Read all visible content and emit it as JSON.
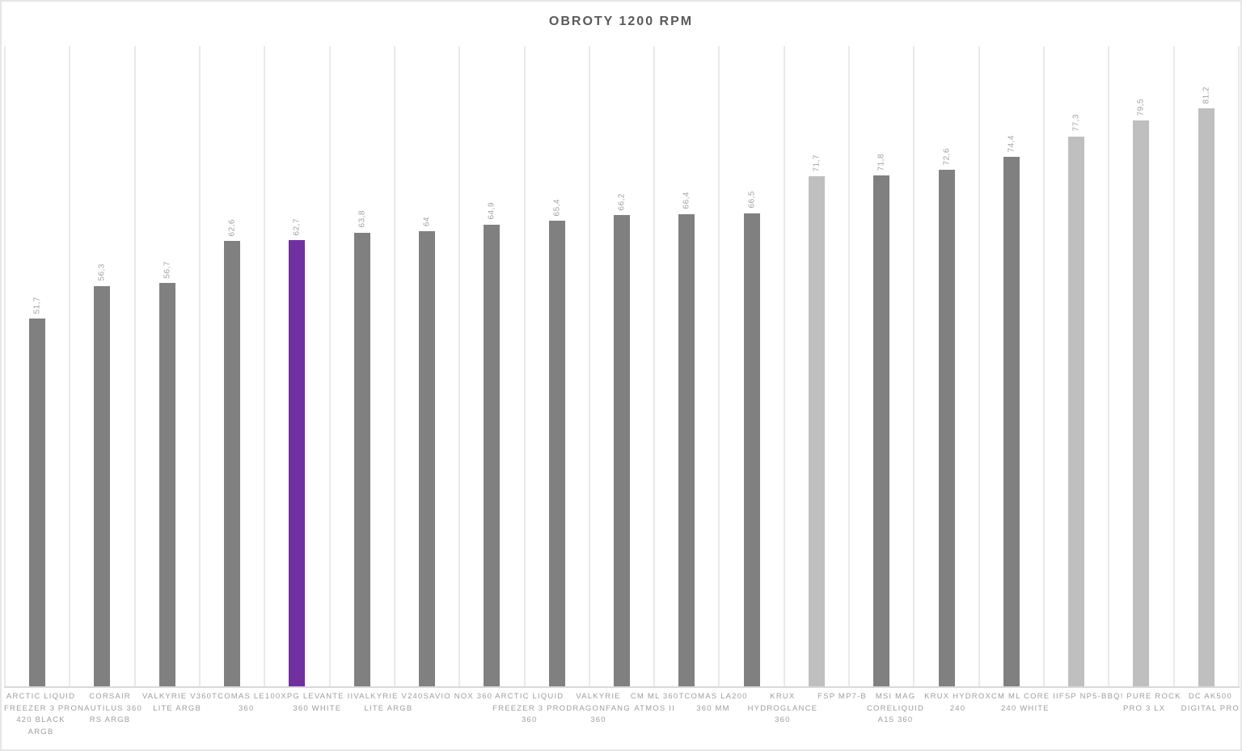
{
  "title": "OBROTY 1200 RPM",
  "chart_data": {
    "type": "bar",
    "title": "OBROTY 1200 RPM",
    "xlabel": "",
    "ylabel": "",
    "ylim": [
      0,
      90
    ],
    "grid": "vertical category separators only, no horizontal gridlines, no y-axis tick labels",
    "legend": "none",
    "decimal_separator": ",",
    "value_label_style": "rotated 90deg above each bar",
    "colors": {
      "default": "#808080",
      "light": "#bfbfbf",
      "highlight": "#7030a0",
      "gridline": "#e9e9e9",
      "baseline": "#d9d9d9",
      "title_text": "#5a5a5a",
      "label_text": "#9d9d9d",
      "value_text": "#a2a2a2"
    },
    "categories": [
      "ARCTIC LIQUID FREEZER 3 PRO 420 BLACK ARGB",
      "CORSAIR NAUTILUS 360 RS ARGB",
      "VALKYRIE V360 LITE ARGB",
      "TCOMAS LE100 360",
      "XPG LEVANTE II 360 WHITE",
      "VALKYRIE V240 LITE ARGB",
      "SAVIO NOX 360",
      "ARCTIC LIQUID FREEZER 3 PRO 360",
      "VALKYRIE DRAGONFANG 360",
      "CM ML 360 ATMOS II",
      "TCOMAS LA200 360 MM",
      "KRUX HYDROGLANCE 360",
      "FSP MP7-B",
      "MSI MAG CORELIQUID A15 360",
      "KRUX HYDROX 240",
      "CM ML CORE II 240 WHITE",
      "FSP NP5-B",
      "BQ! PURE ROCK PRO 3 LX",
      "DC AK500 DIGITAL PRO"
    ],
    "values": [
      51.7,
      56.3,
      56.7,
      62.6,
      62.7,
      63.8,
      64,
      64.9,
      65.4,
      66.2,
      66.4,
      66.5,
      71.7,
      71.8,
      72.6,
      74.4,
      77.3,
      79.5,
      81.2
    ],
    "bars": [
      {
        "name": "ARCTIC LIQUID FREEZER 3 PRO 420 BLACK ARGB",
        "label_lines": [
          "ARCTIC LIQUID",
          "FREEZER 3 PRO",
          "420 BLACK",
          "ARGB"
        ],
        "value": 51.7,
        "value_label": "51,7",
        "color": "default"
      },
      {
        "name": "CORSAIR NAUTILUS 360 RS ARGB",
        "label_lines": [
          "CORSAIR",
          "NAUTILUS 360",
          "RS ARGB"
        ],
        "value": 56.3,
        "value_label": "56,3",
        "color": "default"
      },
      {
        "name": "VALKYRIE V360 LITE ARGB",
        "label_lines": [
          "VALKYRIE V360",
          "LITE ARGB"
        ],
        "value": 56.7,
        "value_label": "56,7",
        "color": "default"
      },
      {
        "name": "TCOMAS LE100 360",
        "label_lines": [
          "TCOMAS LE100",
          "360"
        ],
        "value": 62.6,
        "value_label": "62,6",
        "color": "default"
      },
      {
        "name": "XPG LEVANTE II 360 WHITE",
        "label_lines": [
          "XPG LEVANTE II",
          "360 WHITE"
        ],
        "value": 62.7,
        "value_label": "62,7",
        "color": "highlight"
      },
      {
        "name": "VALKYRIE V240 LITE ARGB",
        "label_lines": [
          "VALKYRIE V240",
          "LITE ARGB"
        ],
        "value": 63.8,
        "value_label": "63,8",
        "color": "default"
      },
      {
        "name": "SAVIO NOX 360",
        "label_lines": [
          "SAVIO NOX 360"
        ],
        "value": 64,
        "value_label": "64",
        "color": "default"
      },
      {
        "name": "ARCTIC LIQUID FREEZER 3 PRO 360",
        "label_lines": [
          "ARCTIC LIQUID",
          "FREEZER 3 PRO",
          "360"
        ],
        "value": 64.9,
        "value_label": "64,9",
        "color": "default"
      },
      {
        "name": "VALKYRIE DRAGONFANG 360",
        "label_lines": [
          "VALKYRIE",
          "DRAGONFANG",
          "360"
        ],
        "value": 65.4,
        "value_label": "65,4",
        "color": "default"
      },
      {
        "name": "CM ML 360 ATMOS II",
        "label_lines": [
          "CM ML 360",
          "ATMOS II"
        ],
        "value": 66.2,
        "value_label": "66,2",
        "color": "default"
      },
      {
        "name": "TCOMAS LA200 360 MM",
        "label_lines": [
          "TCOMAS LA200",
          "360 MM"
        ],
        "value": 66.4,
        "value_label": "66,4",
        "color": "default"
      },
      {
        "name": "KRUX HYDROGLANCE 360",
        "label_lines": [
          "KRUX",
          "HYDROGLANCE",
          "360"
        ],
        "value": 66.5,
        "value_label": "66,5",
        "color": "default"
      },
      {
        "name": "FSP MP7-B",
        "label_lines": [
          "FSP MP7-B"
        ],
        "value": 71.7,
        "value_label": "71,7",
        "color": "light"
      },
      {
        "name": "MSI MAG CORELIQUID A15 360",
        "label_lines": [
          "MSI MAG",
          "CORELIQUID",
          "A15 360"
        ],
        "value": 71.8,
        "value_label": "71,8",
        "color": "default"
      },
      {
        "name": "KRUX HYDROX 240",
        "label_lines": [
          "KRUX HYDROX",
          "240"
        ],
        "value": 72.6,
        "value_label": "72,6",
        "color": "default"
      },
      {
        "name": "CM ML CORE II 240 WHITE",
        "label_lines": [
          "CM ML CORE II",
          "240 WHITE"
        ],
        "value": 74.4,
        "value_label": "74,4",
        "color": "default"
      },
      {
        "name": "FSP NP5-B",
        "label_lines": [
          "FSP NP5-B"
        ],
        "value": 77.3,
        "value_label": "77,3",
        "color": "light"
      },
      {
        "name": "BQ! PURE ROCK PRO 3 LX",
        "label_lines": [
          "BQ! PURE ROCK",
          "PRO 3 LX"
        ],
        "value": 79.5,
        "value_label": "79,5",
        "color": "light"
      },
      {
        "name": "DC AK500 DIGITAL PRO",
        "label_lines": [
          "DC AK500",
          "DIGITAL PRO"
        ],
        "value": 81.2,
        "value_label": "81,2",
        "color": "light"
      }
    ]
  }
}
